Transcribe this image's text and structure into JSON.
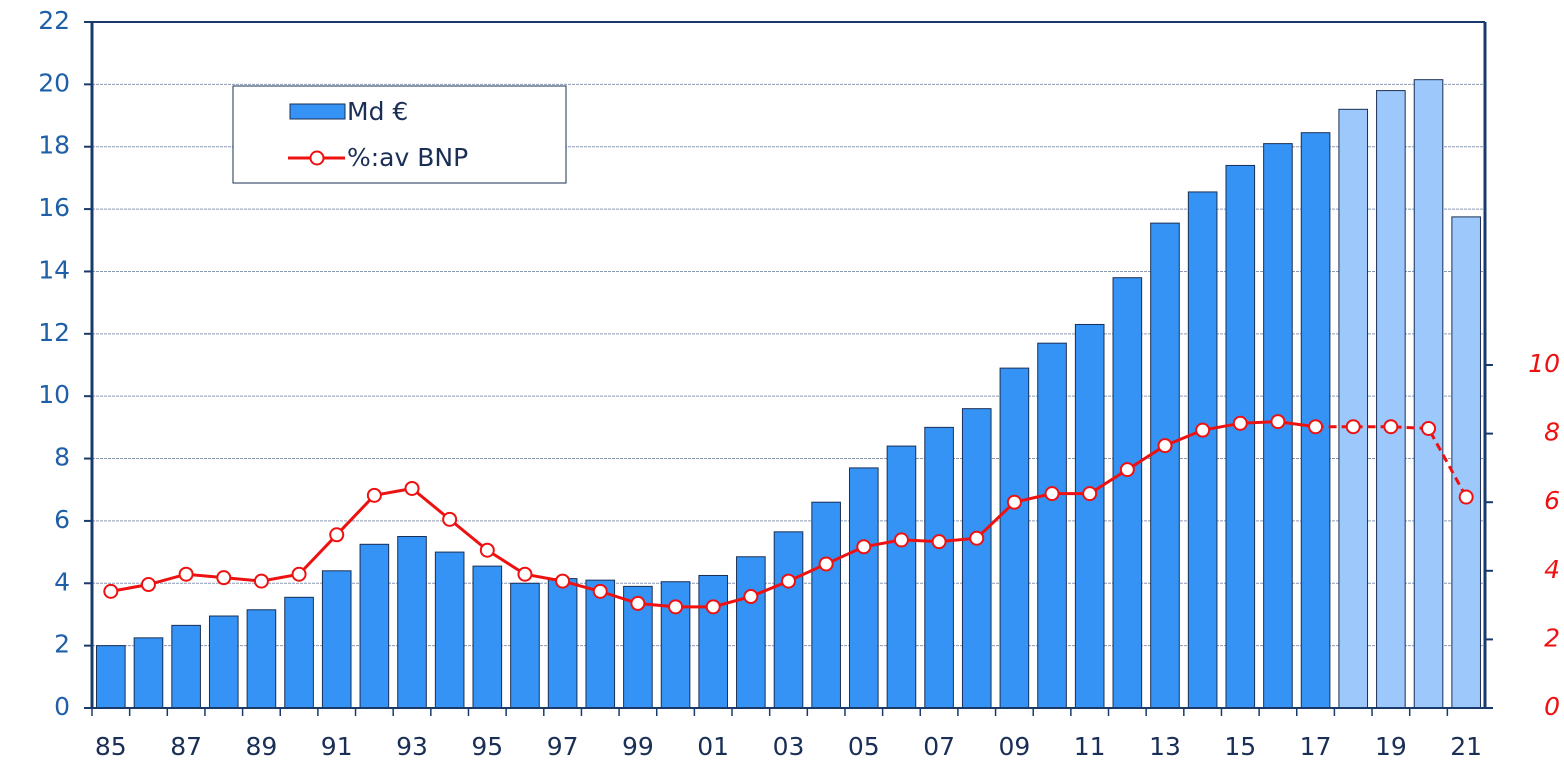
{
  "chart_data": {
    "type": "bar",
    "categories": [
      "85",
      null,
      "87",
      null,
      "89",
      null,
      "91",
      null,
      "93",
      null,
      "95",
      null,
      "97",
      null,
      "99",
      null,
      "01",
      null,
      "03",
      null,
      "05",
      null,
      "07",
      null,
      "09",
      null,
      "11",
      null,
      "13",
      null,
      "15",
      null,
      "17",
      null,
      "19",
      null,
      "21"
    ],
    "series": [
      {
        "name": "Md €",
        "type": "bar",
        "color": "#3593f5",
        "projected_color": "#9dc8fb",
        "values": [
          2.0,
          2.25,
          2.65,
          2.95,
          3.15,
          3.55,
          4.4,
          5.25,
          5.5,
          5.0,
          4.55,
          4.0,
          4.15,
          4.1,
          3.9,
          4.05,
          4.25,
          4.85,
          5.65,
          6.6,
          7.7,
          8.4,
          9.0,
          9.6,
          10.9,
          11.7,
          12.3,
          13.8,
          15.55,
          16.55,
          17.4,
          18.1,
          18.45,
          19.2,
          19.8,
          20.15,
          15.75
        ]
      },
      {
        "name": "%:av BNP",
        "type": "line",
        "axis": "y2",
        "color": "#ee1111",
        "values": [
          3.4,
          3.6,
          3.9,
          3.8,
          3.7,
          3.9,
          5.05,
          6.2,
          6.4,
          5.5,
          4.6,
          3.9,
          3.7,
          3.4,
          3.05,
          2.95,
          2.95,
          3.25,
          3.7,
          4.2,
          4.7,
          4.9,
          4.85,
          4.95,
          6.0,
          6.25,
          6.25,
          6.95,
          7.65,
          8.1,
          8.3,
          8.35,
          8.2,
          8.2,
          8.2,
          8.15,
          6.15
        ]
      }
    ],
    "projected": [
      false,
      false,
      false,
      false,
      false,
      false,
      false,
      false,
      false,
      false,
      false,
      false,
      false,
      false,
      false,
      false,
      false,
      false,
      false,
      false,
      false,
      false,
      false,
      false,
      false,
      false,
      false,
      false,
      false,
      false,
      false,
      false,
      false,
      true,
      true,
      true,
      true
    ],
    "ylim": [
      0,
      22
    ],
    "yticks": [
      0,
      2,
      4,
      6,
      8,
      10,
      12,
      14,
      16,
      18,
      20,
      22
    ],
    "y2lim": [
      0,
      20
    ],
    "y2ticks": [
      0,
      2,
      4,
      6,
      8,
      10
    ],
    "grid": true,
    "legend": "upper left"
  }
}
